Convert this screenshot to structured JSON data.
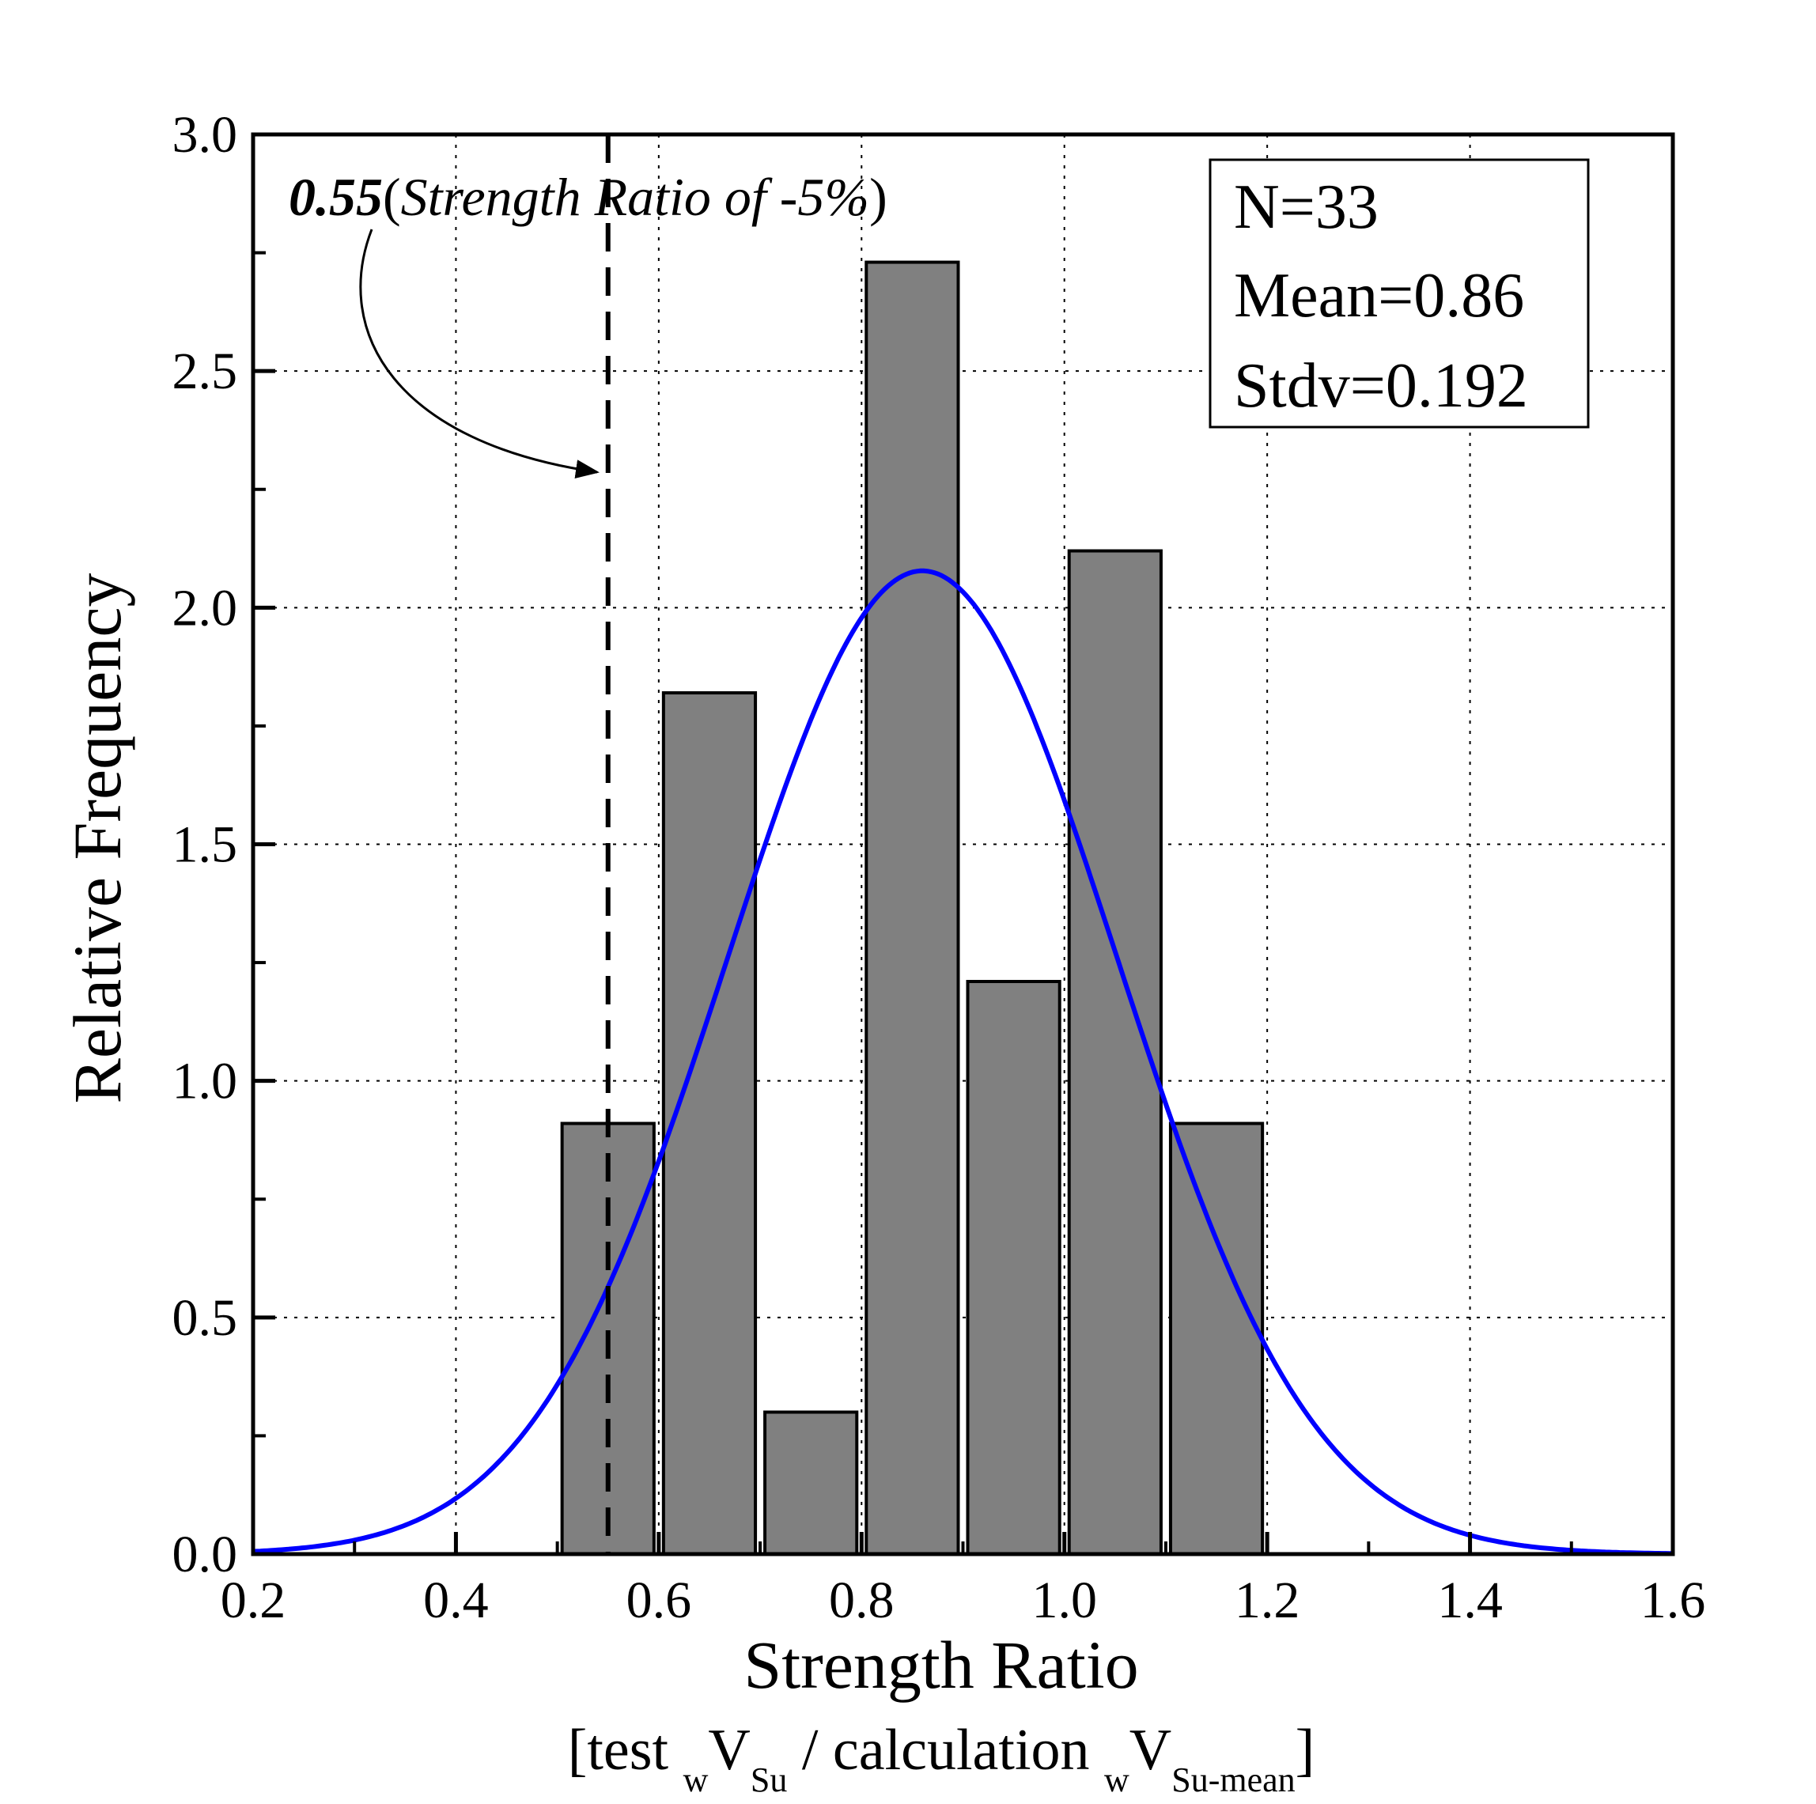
{
  "chart_data": {
    "type": "bar",
    "xlabel": "Strength Ratio",
    "xlabel_sub": {
      "bracket_open": "[",
      "part1": "test ",
      "sub1": "w",
      "sym1": "V",
      "sub2": "Su",
      "part2": " / calculation ",
      "sub3": "w",
      "sym2": "V",
      "sub4": "Su-mean",
      "bracket_close": "]"
    },
    "ylabel": "Relative Frequency",
    "xlim": [
      0.2,
      1.6
    ],
    "ylim": [
      0.0,
      3.0
    ],
    "xticks": [
      0.2,
      0.4,
      0.6,
      0.8,
      1.0,
      1.2,
      1.4,
      1.6
    ],
    "xtick_labels": [
      "0.2",
      "0.4",
      "0.6",
      "0.8",
      "1.0",
      "1.2",
      "1.4",
      "1.6"
    ],
    "yticks": [
      0.0,
      0.5,
      1.0,
      1.5,
      2.0,
      2.5,
      3.0
    ],
    "ytick_labels": [
      "0.0",
      "0.5",
      "1.0",
      "1.5",
      "2.0",
      "2.5",
      "3.0"
    ],
    "grid": true,
    "bins": [
      {
        "start": 0.5,
        "end": 0.6,
        "value": 0.91
      },
      {
        "start": 0.6,
        "end": 0.7,
        "value": 1.82
      },
      {
        "start": 0.7,
        "end": 0.8,
        "value": 0.3
      },
      {
        "start": 0.8,
        "end": 0.9,
        "value": 2.73
      },
      {
        "start": 0.9,
        "end": 1.0,
        "value": 1.21
      },
      {
        "start": 1.0,
        "end": 1.1,
        "value": 2.12
      },
      {
        "start": 1.1,
        "end": 1.2,
        "value": 0.91
      }
    ],
    "bar_color": "#808080",
    "normal_curve": {
      "mean": 0.86,
      "stdv": 0.192,
      "color": "#0000ff"
    },
    "reference_line": {
      "x": 0.55
    },
    "annotation": {
      "bold": "0.55",
      "open": "(",
      "text": "Strength Ratio of -5%",
      "close": ")"
    },
    "stats_box": {
      "lines": [
        "N=33",
        "Mean=0.86",
        "Stdv=0.192"
      ],
      "placement": "top-right"
    }
  }
}
